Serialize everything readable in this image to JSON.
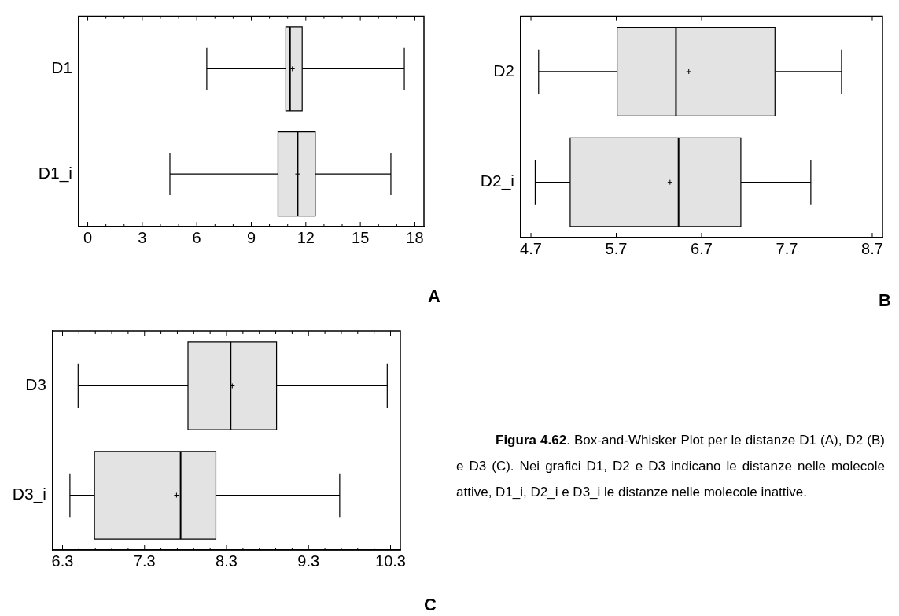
{
  "chart_data": [
    {
      "type": "box",
      "orientation": "horizontal",
      "categories": [
        "D1",
        "D1_i"
      ],
      "color": "#e3e3e3",
      "boxes": [
        {
          "low": 6.55,
          "q1": 10.9,
          "median": 11.13,
          "q3": 11.8,
          "high": 17.42,
          "mean": 11.26
        },
        {
          "low": 4.52,
          "q1": 10.47,
          "median": 11.55,
          "q3": 12.52,
          "high": 16.68,
          "mean": 11.55
        }
      ],
      "xlim": [
        -0.5,
        18.5
      ],
      "xticks": [
        0,
        {
          "value": 1,
          "label": null
        },
        {
          "value": 2,
          "label": null
        },
        3,
        {
          "value": 4,
          "label": null
        },
        {
          "value": 5,
          "label": null
        },
        6,
        {
          "value": 7,
          "label": null
        },
        {
          "value": 8,
          "label": null
        },
        9,
        {
          "value": 10,
          "label": null
        },
        {
          "value": 11,
          "label": null
        },
        12,
        {
          "value": 13,
          "label": null
        },
        {
          "value": 14,
          "label": null
        },
        15,
        {
          "value": 16,
          "label": null
        },
        {
          "value": 17,
          "label": null
        },
        18
      ],
      "annotations": [
        "A"
      ]
    },
    {
      "type": "box",
      "orientation": "horizontal",
      "categories": [
        "D2",
        "D2_i"
      ],
      "color": "#e3e3e3",
      "boxes": [
        {
          "low": 4.79,
          "q1": 5.71,
          "median": 6.4,
          "q3": 7.56,
          "high": 8.34,
          "mean": 6.55
        },
        {
          "low": 4.75,
          "q1": 5.16,
          "median": 6.43,
          "q3": 7.16,
          "high": 7.98,
          "mean": 6.33
        }
      ],
      "xlim": [
        4.58,
        8.82
      ],
      "xticks": [
        {
          "value": 4.7,
          "label": "4.7"
        },
        {
          "value": 5.7,
          "label": "5.7"
        },
        {
          "value": 6.7,
          "label": "6.7"
        },
        {
          "value": 7.7,
          "label": "7.7"
        },
        {
          "value": 8.7,
          "label": "8.7"
        }
      ],
      "annotations": [
        "B"
      ]
    },
    {
      "type": "box",
      "orientation": "horizontal",
      "categories": [
        "D3",
        "D3_i"
      ],
      "color": "#e3e3e3",
      "boxes": [
        {
          "low": 6.49,
          "q1": 7.83,
          "median": 8.35,
          "q3": 8.91,
          "high": 10.26,
          "mean": 8.37
        },
        {
          "low": 6.39,
          "q1": 6.69,
          "median": 7.74,
          "q3": 8.17,
          "high": 9.68,
          "mean": 7.69
        }
      ],
      "xlim": [
        6.18,
        10.42
      ],
      "xticks": [
        {
          "value": 6.3,
          "label": "6.3"
        },
        {
          "value": 6.5,
          "label": null
        },
        {
          "value": 6.7,
          "label": null
        },
        {
          "value": 6.9,
          "label": null
        },
        {
          "value": 7.1,
          "label": null
        },
        {
          "value": 7.3,
          "label": "7.3"
        },
        {
          "value": 7.5,
          "label": null
        },
        {
          "value": 7.7,
          "label": null
        },
        {
          "value": 7.9,
          "label": null
        },
        {
          "value": 8.1,
          "label": null
        },
        {
          "value": 8.3,
          "label": "8.3"
        },
        {
          "value": 8.5,
          "label": null
        },
        {
          "value": 8.7,
          "label": null
        },
        {
          "value": 8.9,
          "label": null
        },
        {
          "value": 9.1,
          "label": null
        },
        {
          "value": 9.3,
          "label": "9.3"
        },
        {
          "value": 9.5,
          "label": null
        },
        {
          "value": 9.7,
          "label": null
        },
        {
          "value": 9.9,
          "label": null
        },
        {
          "value": 10.1,
          "label": null
        },
        {
          "value": 10.3,
          "label": "10.3"
        }
      ],
      "annotations": [
        "C"
      ]
    },
    {
      "type": "other",
      "title": "Figura 4.62",
      "annotations": [
        ". Box-and-Whisker Plot per le distanze D1 (A), D2 (B) e D3 (C). Nei grafici D1, D2 e D3 indicano le distanze nelle molecole attive, D1_i, D2_i e D3_i le distanze nelle molecole inattive."
      ]
    }
  ]
}
